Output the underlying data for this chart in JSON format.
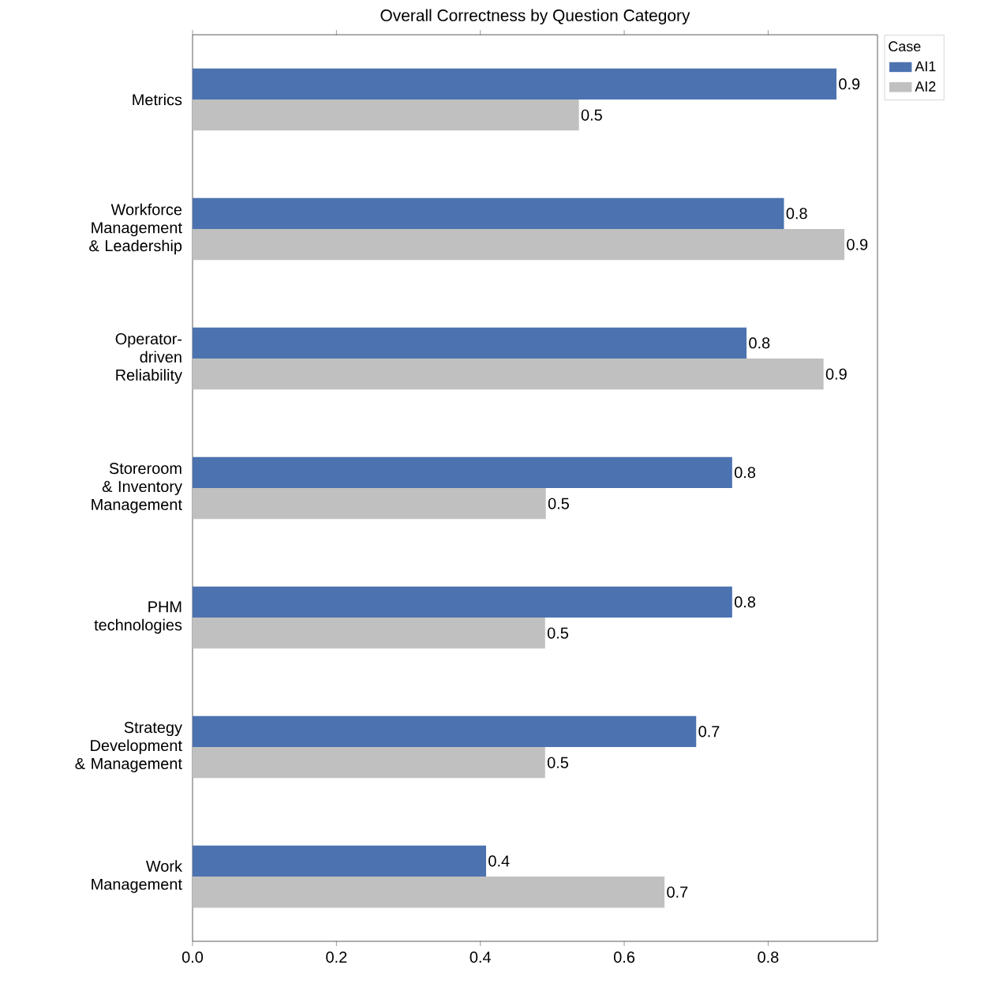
{
  "chart_data": {
    "type": "bar",
    "orientation": "horizontal",
    "title": "Overall Correctness by Question Category",
    "categories": [
      "Metrics",
      "Workforce Management & Leadership",
      "Operator-driven Reliability",
      "Storeroom & Inventory Management",
      "PHM technologies",
      "Strategy Development & Management",
      "Work Management"
    ],
    "series": [
      {
        "name": "AI1",
        "color": "#4c72b0",
        "values": [
          0.895,
          0.822,
          0.77,
          0.75,
          0.75,
          0.7,
          0.408
        ],
        "value_labels": [
          "0.9",
          "0.8",
          "0.8",
          "0.8",
          "0.8",
          "0.7",
          "0.4"
        ]
      },
      {
        "name": "AI2",
        "color": "#c0c0c0",
        "values": [
          0.537,
          0.906,
          0.877,
          0.491,
          0.49,
          0.49,
          0.656
        ],
        "value_labels": [
          "0.5",
          "0.9",
          "0.9",
          "0.5",
          "0.5",
          "0.5",
          "0.7"
        ]
      }
    ],
    "legend_title": "Case",
    "legend": "top right",
    "xlim": [
      0,
      0.952
    ],
    "xticks": [
      {
        "value": 0,
        "label": "0.0"
      },
      0.2,
      0.4,
      0.6,
      0.8
    ],
    "grid": false
  }
}
